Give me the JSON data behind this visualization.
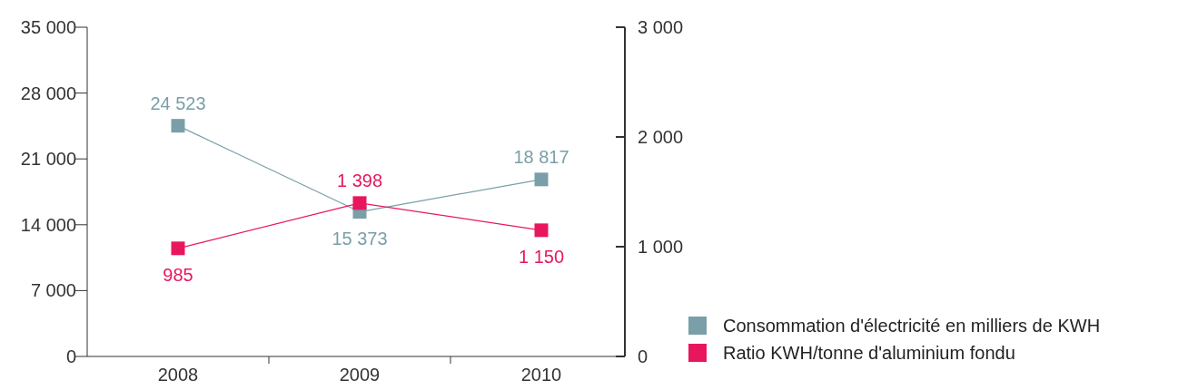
{
  "chart_data": {
    "type": "line",
    "categories": [
      "2008",
      "2009",
      "2010"
    ],
    "series": [
      {
        "name": "Consommation d'électricité en milliers de KWH",
        "color": "#7a9fa8",
        "values": [
          24523,
          15373,
          18817
        ]
      },
      {
        "name": "Ratio KWH/tonne d'aluminium fondu",
        "color": "#e8175d",
        "values": [
          985,
          1398,
          1150
        ],
        "axis": "y2"
      }
    ],
    "ylim": [
      0,
      35000
    ],
    "yticks": [
      {
        "value": 0,
        "label": "0"
      },
      {
        "value": 7000,
        "label": "7 000"
      },
      {
        "value": 14000,
        "label": "14 000"
      },
      {
        "value": 21000,
        "label": "21 000"
      },
      {
        "value": 28000,
        "label": "28 000"
      },
      {
        "value": 35000,
        "label": "35 000"
      }
    ],
    "y2lim": [
      0,
      3000
    ],
    "y2ticks": [
      {
        "value": 0,
        "label": "0"
      },
      {
        "value": 1000,
        "label": "1 000"
      },
      {
        "value": 2000,
        "label": "2 000"
      },
      {
        "value": 3000,
        "label": "3 000"
      }
    ],
    "data_labels": true,
    "marker": "square",
    "legend": "bottom right",
    "grid": false
  }
}
